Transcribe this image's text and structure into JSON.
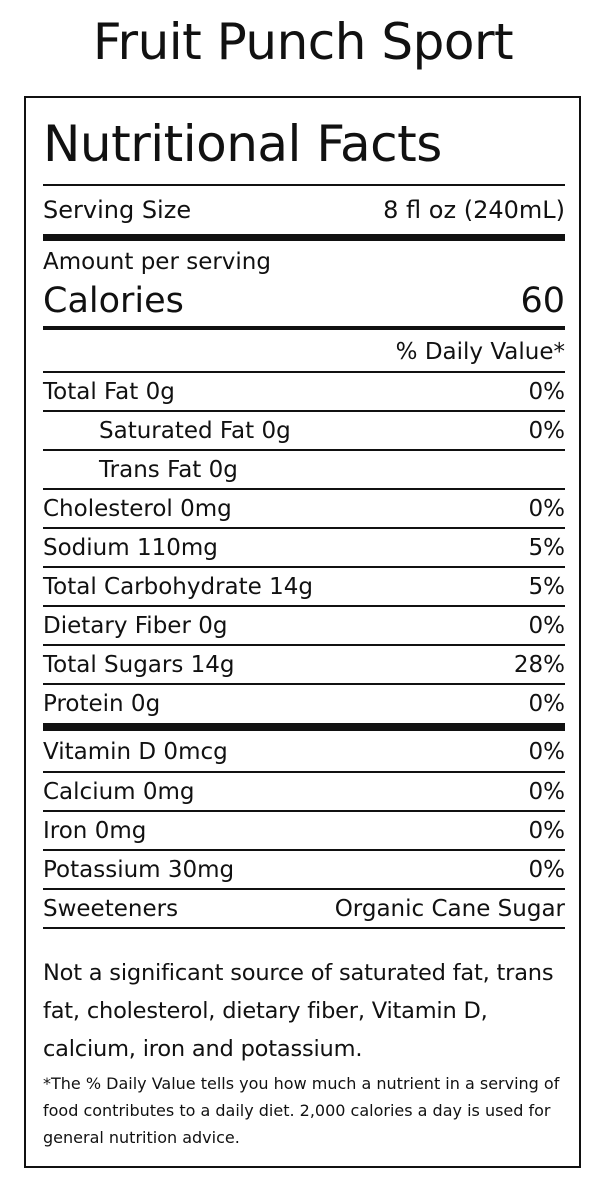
{
  "product_title": "Fruit Punch Sport",
  "label": {
    "heading": "Nutritional Facts",
    "serving": {
      "label": "Serving Size",
      "value": "8 fl oz (240mL)"
    },
    "amount_per_serving": "Amount per serving",
    "calories": {
      "label": "Calories",
      "value": "60"
    },
    "daily_value_header": "% Daily Value*",
    "nutrients": [
      {
        "name": "Total Fat 0g",
        "dv": "0%"
      },
      {
        "name": "Saturated Fat 0g",
        "dv": "0%"
      },
      {
        "name": "Trans Fat 0g",
        "dv": ""
      },
      {
        "name": "Cholesterol 0mg",
        "dv": "0%"
      },
      {
        "name": "Sodium 110mg",
        "dv": "5%"
      },
      {
        "name": "Total Carbohydrate 14g",
        "dv": "5%"
      },
      {
        "name": "Dietary Fiber 0g",
        "dv": "0%"
      },
      {
        "name": "Total Sugars 14g",
        "dv": "28%"
      },
      {
        "name": "Protein 0g",
        "dv": "0%"
      }
    ],
    "vitamins": [
      {
        "name": "Vitamin D 0mcg",
        "dv": "0%"
      },
      {
        "name": "Calcium 0mg",
        "dv": "0%"
      },
      {
        "name": "Iron 0mg",
        "dv": "0%"
      },
      {
        "name": "Potassium 30mg",
        "dv": "0%"
      }
    ],
    "sweeteners": {
      "label": "Sweeteners",
      "value": "Organic Cane Sugar"
    },
    "note": "Not a significant source of saturated fat, trans fat, cholesterol, dietary fiber, Vitamin D, calcium, iron and potassium.",
    "footnote": "*The % Daily Value tells you how much a nutrient in a serving of food contributes to a daily diet. 2,000 calories a day is used for general nutrition advice."
  }
}
